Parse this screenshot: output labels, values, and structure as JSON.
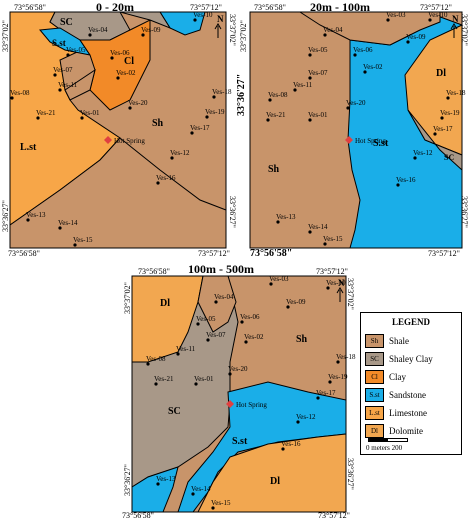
{
  "colors": {
    "shale": "#c8946a",
    "shaley_clay": "#a89888",
    "clay": "#f28a28",
    "sandstone": "#1aaee8",
    "limestone": "#f7a648",
    "dolomite": "#f2a750",
    "hot_spring": "#e04040"
  },
  "panels": [
    {
      "title": "0 - 20m",
      "coords": {
        "top_left": "73°56'58\"",
        "top_right": "73°57'12\"",
        "bottom_left": "73°56'58\"",
        "bottom_right": "73°57'12\"",
        "left_top": "33°37'02\"",
        "left_bottom": "33°36'27\"",
        "right_top": "33°37'02\"",
        "right_bottom": "33°36'27\""
      },
      "units": [
        "SC",
        "S.st",
        "Cl",
        "Sh",
        "L.st"
      ],
      "north": "N"
    },
    {
      "title": "20m - 100m",
      "coords": {
        "top_left": "73°56'58\"",
        "top_right": "73°57'12\"",
        "bottom_left": "73°56'58\"",
        "bottom_right": "73°57'12\"",
        "left_top": "33°37'02\"",
        "left_bottom": "33°36'27\"",
        "right_top": "33°37'02\"",
        "right_bottom": "33°36'27\""
      },
      "units": [
        "Dl",
        "Sh",
        "S.st",
        "SC"
      ],
      "north": "N"
    },
    {
      "title": "100m - 500m",
      "coords": {
        "top_left": "73°56'58\"",
        "top_right": "73°57'12\"",
        "bottom_left": "73°56'58\"",
        "bottom_right": "73°57'12\"",
        "left_top": "33°37'02\"",
        "left_bottom": "33°36'27\"",
        "right_top": "33°37'02\"",
        "right_bottom": "33°36'27\""
      },
      "units": [
        "Dl",
        "Sh",
        "SC",
        "S.st",
        "Dl"
      ],
      "north": "N"
    }
  ],
  "points": [
    "Ves-03",
    "Ves-04",
    "Ves-10",
    "Ves-09",
    "Ves-05",
    "Ves-06",
    "Ves-07",
    "Ves-02",
    "Ves-11",
    "Ves-08",
    "Ves-18",
    "Ves-20",
    "Ves-21",
    "Ves-01",
    "Ves-19",
    "Ves-17",
    "Ves-12",
    "Ves-16",
    "Ves-13",
    "Ves-14",
    "Ves-15"
  ],
  "hot_spring": "Hot Spring",
  "legend": {
    "title": "LEGEND",
    "items": [
      {
        "code": "Sh",
        "label": "Shale",
        "color": "#c8946a"
      },
      {
        "code": "SC",
        "label": "Shaley Clay",
        "color": "#a89888"
      },
      {
        "code": "Cl",
        "label": "Clay",
        "color": "#f28a28"
      },
      {
        "code": "S.st",
        "label": "Sandstone",
        "color": "#1aaee8"
      },
      {
        "code": "L.st",
        "label": "Limestone",
        "color": "#f7a648"
      },
      {
        "code": "Dl",
        "label": "Dolomite",
        "color": "#f2a750"
      }
    ],
    "scale_label": "0     meters 200"
  }
}
